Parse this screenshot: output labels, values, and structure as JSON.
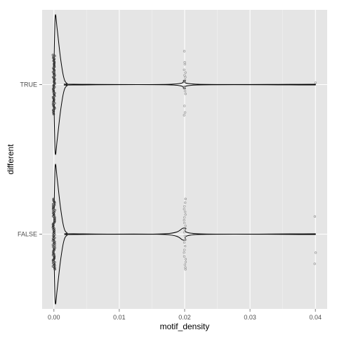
{
  "chart_data": {
    "type": "violin",
    "orientation": "horizontal",
    "title": "",
    "xlabel": "motif_density",
    "ylabel": "different",
    "xlim": [
      -0.0018,
      0.0418
    ],
    "x_ticks": [
      0.0,
      0.01,
      0.02,
      0.03,
      0.04
    ],
    "x_tick_labels": [
      "0.00",
      "0.01",
      "0.02",
      "0.03",
      "0.04"
    ],
    "categories": [
      "TRUE",
      "FALSE"
    ],
    "grid": true,
    "panel_background": "#e5e5e5",
    "grid_color": "#ffffff",
    "line_color": "#000000",
    "point_color": "#999999",
    "groups": [
      {
        "name": "TRUE",
        "density_profile": [
          {
            "x": 0.0,
            "w": 0.12
          },
          {
            "x": 0.0002,
            "w": 0.55
          },
          {
            "x": 0.0005,
            "w": 0.45
          },
          {
            "x": 0.001,
            "w": 0.22
          },
          {
            "x": 0.0015,
            "w": 0.06
          },
          {
            "x": 0.002,
            "w": 0.01
          },
          {
            "x": 0.003,
            "w": 0.003
          },
          {
            "x": 0.018,
            "w": 0.003
          },
          {
            "x": 0.02,
            "w": 0.035
          },
          {
            "x": 0.022,
            "w": 0.003
          },
          {
            "x": 0.04,
            "w": 0.003
          }
        ],
        "points": [
          {
            "x": 0.0,
            "jitter": [
              -0.32,
              0.32
            ],
            "count": 60
          },
          {
            "x": 0.02,
            "jitter_values": [
              -0.36,
              -0.24,
              -0.22,
              -0.16,
              -0.13,
              -0.1,
              -0.08,
              -0.05,
              -0.03,
              0.02,
              0.04,
              0.07,
              0.1,
              0.23,
              0.3,
              0.33
            ]
          },
          {
            "x": 0.04,
            "jitter_values": [
              -0.02
            ]
          }
        ]
      },
      {
        "name": "FALSE",
        "density_profile": [
          {
            "x": 0.0,
            "w": 0.12
          },
          {
            "x": 0.0002,
            "w": 0.55
          },
          {
            "x": 0.0005,
            "w": 0.45
          },
          {
            "x": 0.001,
            "w": 0.22
          },
          {
            "x": 0.0015,
            "w": 0.06
          },
          {
            "x": 0.002,
            "w": 0.01
          },
          {
            "x": 0.003,
            "w": 0.003
          },
          {
            "x": 0.017,
            "w": 0.003
          },
          {
            "x": 0.02,
            "w": 0.05
          },
          {
            "x": 0.022,
            "w": 0.003
          },
          {
            "x": 0.04,
            "w": 0.003
          }
        ],
        "points": [
          {
            "x": 0.0,
            "jitter": [
              -0.38,
              0.38
            ],
            "count": 70
          },
          {
            "x": 0.02,
            "jitter_values": [
              -0.38,
              -0.34,
              -0.3,
              -0.27,
              -0.24,
              -0.21,
              -0.18,
              -0.15,
              -0.12,
              -0.09,
              -0.05,
              -0.02,
              0.02,
              0.06,
              0.09,
              0.13,
              0.17,
              0.2,
              0.24,
              0.27,
              0.3,
              0.33,
              0.36,
              0.38
            ]
          },
          {
            "x": 0.04,
            "jitter_values": [
              -0.19,
              0.2,
              0.32
            ]
          }
        ]
      }
    ]
  }
}
